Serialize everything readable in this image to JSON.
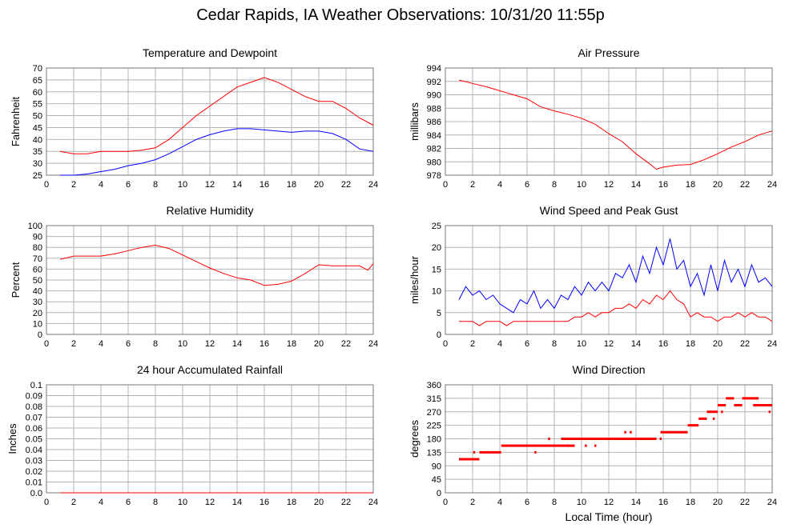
{
  "title": "Cedar Rapids, IA Weather Observations: 10/31/20 11:55p",
  "xlabel_bottom": "Local Time (hour)",
  "colors": {
    "red": "#ff0000",
    "blue": "#0000ff",
    "grid": "#b4b4b4",
    "axis": "#000000"
  },
  "chart_data": [
    {
      "id": "temp",
      "type": "line",
      "title": "Temperature and Dewpoint",
      "ylabel": "Fahrenheit",
      "xlim": [
        0,
        24
      ],
      "ylim": [
        25,
        70
      ],
      "xticks": [
        2,
        4,
        6,
        8,
        10,
        12,
        14,
        16,
        18,
        20,
        22,
        24
      ],
      "yticks": [
        25,
        30,
        35,
        40,
        45,
        50,
        55,
        60,
        65,
        70
      ],
      "series": [
        {
          "color": "#ff0000",
          "x": [
            1,
            2,
            3,
            4,
            5,
            6,
            7,
            8,
            9,
            10,
            11,
            12,
            13,
            14,
            15,
            16,
            17,
            18,
            19,
            20,
            21,
            22,
            23,
            24
          ],
          "values": [
            35,
            34,
            34,
            35,
            35,
            35,
            35.5,
            36.5,
            40,
            45,
            50,
            54,
            58,
            62,
            64,
            66,
            64,
            61,
            58,
            56,
            56,
            53,
            49,
            46
          ]
        },
        {
          "color": "#0000ff",
          "x": [
            1,
            2,
            3,
            4,
            5,
            6,
            7,
            8,
            9,
            10,
            11,
            12,
            13,
            14,
            15,
            16,
            17,
            18,
            19,
            20,
            21,
            22,
            23,
            24
          ],
          "values": [
            25,
            25,
            25.5,
            26.5,
            27.5,
            29,
            30,
            31.5,
            34,
            37,
            40,
            42,
            43.5,
            44.5,
            44.5,
            44,
            43.5,
            43,
            43.5,
            43.5,
            42.5,
            40,
            36,
            35
          ]
        }
      ]
    },
    {
      "id": "pressure",
      "type": "line",
      "title": "Air Pressure",
      "ylabel": "millibars",
      "xlim": [
        0,
        24
      ],
      "ylim": [
        978,
        994
      ],
      "xticks": [
        2,
        4,
        6,
        8,
        10,
        12,
        14,
        16,
        18,
        20,
        22,
        24
      ],
      "yticks": [
        978,
        980,
        982,
        984,
        986,
        988,
        990,
        992,
        994
      ],
      "series": [
        {
          "color": "#ff0000",
          "x": [
            1,
            2,
            3,
            4,
            5,
            6,
            7,
            8,
            9,
            10,
            11,
            12,
            13,
            14,
            15,
            15.5,
            16,
            17,
            18,
            19,
            20,
            21,
            22,
            23,
            24
          ],
          "values": [
            992.2,
            991.7,
            991.2,
            990.6,
            990,
            989.4,
            988.2,
            987.6,
            987.1,
            986.5,
            985.6,
            984.2,
            983,
            981.2,
            979.7,
            978.9,
            979.2,
            979.5,
            979.6,
            980.3,
            981.2,
            982.2,
            983,
            984,
            984.6
          ]
        }
      ]
    },
    {
      "id": "humidity",
      "type": "line",
      "title": "Relative Humidity",
      "ylabel": "Percent",
      "xlim": [
        0,
        24
      ],
      "ylim": [
        0,
        100
      ],
      "xticks": [
        2,
        4,
        6,
        8,
        10,
        12,
        14,
        16,
        18,
        20,
        22,
        24
      ],
      "yticks": [
        0,
        10,
        20,
        30,
        40,
        50,
        60,
        70,
        80,
        90,
        100
      ],
      "series": [
        {
          "color": "#ff0000",
          "x": [
            1,
            2,
            3,
            4,
            5,
            6,
            7,
            8,
            9,
            10,
            11,
            12,
            13,
            14,
            15,
            16,
            17,
            18,
            19,
            20,
            21,
            22,
            23,
            23.6,
            24
          ],
          "values": [
            69,
            72,
            72,
            72,
            74,
            77,
            80,
            82,
            79,
            73,
            67,
            61,
            56,
            52,
            50,
            45,
            46,
            49,
            56,
            64,
            63,
            63,
            63,
            59,
            65
          ]
        }
      ]
    },
    {
      "id": "wind",
      "type": "line",
      "title": "Wind Speed and Peak Gust",
      "ylabel": "miles/hour",
      "xlim": [
        0,
        24
      ],
      "ylim": [
        0,
        25
      ],
      "xticks": [
        2,
        4,
        6,
        8,
        10,
        12,
        14,
        16,
        18,
        20,
        22,
        24
      ],
      "yticks": [
        0,
        5,
        10,
        15,
        20,
        25
      ],
      "series": [
        {
          "color": "#0000ff",
          "x": [
            1,
            1.5,
            2,
            2.5,
            3,
            3.5,
            4,
            4.5,
            5,
            5.5,
            6,
            6.5,
            7,
            7.5,
            8,
            8.5,
            9,
            9.5,
            10,
            10.5,
            11,
            11.5,
            12,
            12.5,
            13,
            13.5,
            14,
            14.5,
            15,
            15.5,
            16,
            16.5,
            17,
            17.5,
            18,
            18.5,
            19,
            19.5,
            20,
            20.5,
            21,
            21.5,
            22,
            22.5,
            23,
            23.5,
            24
          ],
          "values": [
            8,
            11,
            9,
            10,
            8,
            9,
            7,
            6,
            5,
            8,
            7,
            10,
            6,
            8,
            6,
            9,
            8,
            11,
            9,
            12,
            10,
            12,
            10,
            14,
            13,
            16,
            12,
            18,
            14,
            20,
            16,
            22,
            15,
            17,
            11,
            14,
            9,
            16,
            10,
            17,
            12,
            15,
            11,
            16,
            12,
            13,
            11
          ]
        },
        {
          "color": "#ff0000",
          "x": [
            1,
            1.5,
            2,
            2.5,
            3,
            3.5,
            4,
            4.5,
            5,
            5.5,
            6,
            6.5,
            7,
            7.5,
            8,
            8.5,
            9,
            9.5,
            10,
            10.5,
            11,
            11.5,
            12,
            12.5,
            13,
            13.5,
            14,
            14.5,
            15,
            15.5,
            16,
            16.5,
            17,
            17.5,
            18,
            18.5,
            19,
            19.5,
            20,
            20.5,
            21,
            21.5,
            22,
            22.5,
            23,
            23.5,
            24
          ],
          "values": [
            3,
            3,
            3,
            2,
            3,
            3,
            3,
            2,
            3,
            3,
            3,
            3,
            3,
            3,
            3,
            3,
            3,
            4,
            4,
            5,
            4,
            5,
            5,
            6,
            6,
            7,
            6,
            8,
            7,
            9,
            8,
            10,
            8,
            7,
            4,
            5,
            4,
            4,
            3,
            4,
            4,
            5,
            4,
            5,
            4,
            4,
            3
          ]
        }
      ]
    },
    {
      "id": "rain",
      "type": "line",
      "title": "24 hour Accumulated Rainfall",
      "ylabel": "Inches",
      "xlim": [
        0,
        24
      ],
      "ylim": [
        0,
        0.1
      ],
      "xticks": [
        2,
        4,
        6,
        8,
        10,
        12,
        14,
        16,
        18,
        20,
        22,
        24
      ],
      "yticks": [
        0.0,
        0.01,
        0.02,
        0.03,
        0.04,
        0.05,
        0.06,
        0.07,
        0.08,
        0.09,
        0.1
      ],
      "ytick_labels": [
        "0.0",
        "0.01",
        "0.02",
        "0.03",
        "0.04",
        "0.05",
        "0.06",
        "0.07",
        "0.08",
        "0.09",
        "0.1"
      ],
      "series": [
        {
          "color": "#ff0000",
          "x": [
            1,
            24
          ],
          "values": [
            0,
            0
          ]
        }
      ]
    },
    {
      "id": "direction",
      "type": "scatter",
      "title": "Wind Direction",
      "ylabel": "degrees",
      "xlabel": "Local Time (hour)",
      "xlim": [
        0,
        24
      ],
      "ylim": [
        0,
        360
      ],
      "xticks": [
        2,
        4,
        6,
        8,
        10,
        12,
        14,
        16,
        18,
        20,
        22,
        24
      ],
      "yticks": [
        0,
        45,
        90,
        135,
        180,
        225,
        270,
        315,
        360
      ],
      "segments": [
        {
          "color": "#ff0000",
          "x": [
            1,
            2.5
          ],
          "y": 112
        },
        {
          "color": "#ff0000",
          "x": [
            2.5,
            3.3
          ],
          "y": 135
        },
        {
          "color": "#ff0000",
          "x": [
            3.3,
            4.1
          ],
          "y": 135
        },
        {
          "color": "#ff0000",
          "x": [
            4.1,
            9.5
          ],
          "y": 157
        },
        {
          "color": "#ff0000",
          "x": [
            8.5,
            15.5
          ],
          "y": 180
        },
        {
          "color": "#ff0000",
          "x": [
            15.8,
            17.8
          ],
          "y": 202
        },
        {
          "color": "#ff0000",
          "x": [
            17.8,
            18.6
          ],
          "y": 225
        },
        {
          "color": "#ff0000",
          "x": [
            18.6,
            19.2
          ],
          "y": 247
        },
        {
          "color": "#ff0000",
          "x": [
            19.2,
            20.0
          ],
          "y": 270
        },
        {
          "color": "#ff0000",
          "x": [
            20.0,
            20.6
          ],
          "y": 292
        },
        {
          "color": "#ff0000",
          "x": [
            20.6,
            21.2
          ],
          "y": 315
        },
        {
          "color": "#ff0000",
          "x": [
            21.2,
            21.8
          ],
          "y": 292
        },
        {
          "color": "#ff0000",
          "x": [
            21.8,
            23.0
          ],
          "y": 315
        },
        {
          "color": "#ff0000",
          "x": [
            22.6,
            24.0
          ],
          "y": 292
        }
      ],
      "points": [
        {
          "x": 2.1,
          "y": 135
        },
        {
          "x": 6.6,
          "y": 135
        },
        {
          "x": 9.0,
          "y": 157
        },
        {
          "x": 10.3,
          "y": 157
        },
        {
          "x": 11.0,
          "y": 157
        },
        {
          "x": 13.2,
          "y": 202
        },
        {
          "x": 13.6,
          "y": 202
        },
        {
          "x": 15.8,
          "y": 180
        },
        {
          "x": 19.7,
          "y": 247
        },
        {
          "x": 20.3,
          "y": 270
        },
        {
          "x": 23.8,
          "y": 270
        },
        {
          "x": 7.6,
          "y": 180
        }
      ]
    }
  ]
}
